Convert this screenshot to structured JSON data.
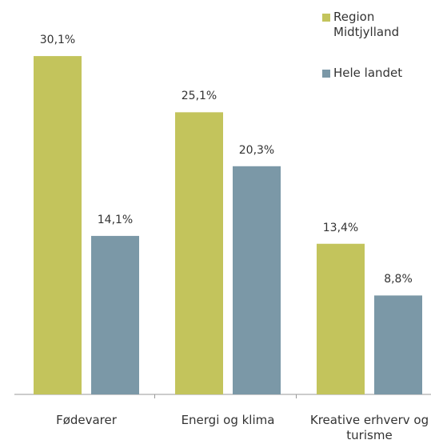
{
  "chart_data": {
    "type": "bar",
    "categories": [
      "Fødevarer",
      "Energi og klima",
      "Kreative erhverv og turisme"
    ],
    "series": [
      {
        "name": "Region Midtjylland",
        "color": "#c3c45c",
        "values": [
          30.1,
          25.1,
          13.4
        ],
        "value_labels": [
          "30,1%",
          "25,1%",
          "13,4%"
        ]
      },
      {
        "name": "Hele landet",
        "color": "#7b98a7",
        "values": [
          14.1,
          20.3,
          8.8
        ],
        "value_labels": [
          "14,1%",
          "20,3%",
          "8,8%"
        ]
      }
    ]
  }
}
